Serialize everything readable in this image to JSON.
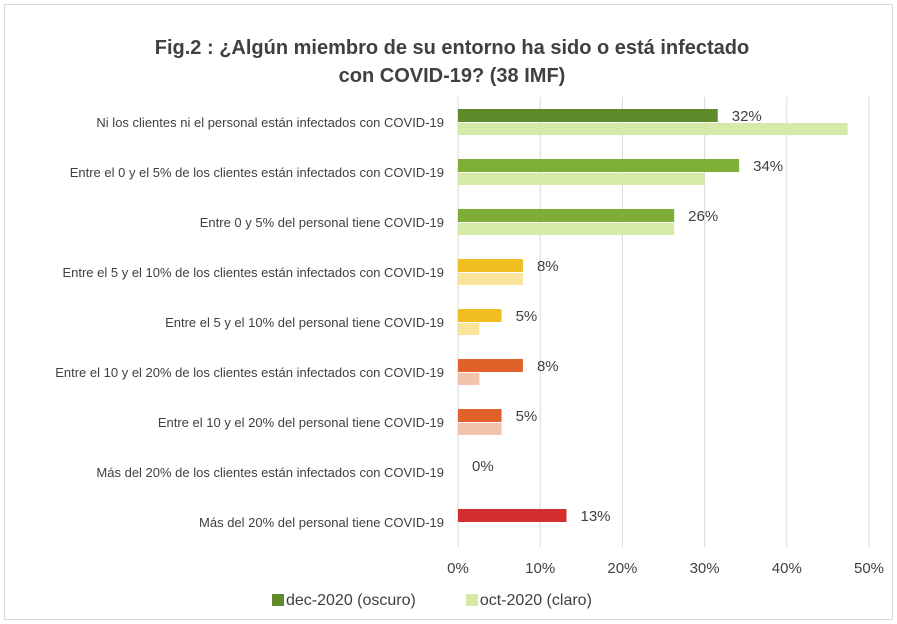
{
  "chart_data": {
    "type": "hbar",
    "title": "Fig.2 : ¿Algún miembro de su entorno ha sido o está infectado con COVID-19? (38 IMF)",
    "categories": [
      "Ni los clientes ni el personal están infectados con COVID-19",
      "Entre el 0 y el 5% de los clientes están infectados con COVID-19",
      "Entre 0 y 5% del personal tiene COVID-19",
      "Entre el 5 y el 10% de los clientes están infectados con COVID-19",
      "Entre el 5 y el 10% del personal tiene COVID-19",
      "Entre el 10 y el 20% de los clientes están infectados con COVID-19",
      "Entre el 10 y el 20% del personal tiene COVID-19",
      "Más del 20% de los clientes están infectados con COVID-19",
      "Más del 20% del personal tiene COVID-19"
    ],
    "series": [
      {
        "name": "dec-2020 (oscuro)",
        "color": "#5f8a2a",
        "colors": [
          "#5f8a2a",
          "#7fae36",
          "#7fae36",
          "#efbf21",
          "#efbf21",
          "#e0622a",
          "#e0622a",
          "#d42e2e",
          "#d42e2e"
        ],
        "values": [
          31.6,
          34.2,
          26.3,
          7.9,
          5.3,
          7.9,
          5.3,
          0,
          13.2
        ],
        "value_labels": [
          "32%",
          "34%",
          "26%",
          "8%",
          "5%",
          "8%",
          "5%",
          "0%",
          "13%"
        ]
      },
      {
        "name": "oct-2020 (claro)",
        "color": "#d5e9a9",
        "colors": [
          "#d5e9a9",
          "#d5e9a9",
          "#d5e9a9",
          "#f8e49b",
          "#f8e49b",
          "#f4c3ae",
          "#f4c3ae",
          "#f2b3b3",
          "#f2b3b3"
        ],
        "values": [
          47.4,
          30,
          26.3,
          7.9,
          2.6,
          2.6,
          5.3,
          0,
          0
        ]
      }
    ],
    "xlim": [
      0,
      50
    ],
    "xticks": [
      {
        "value": 0,
        "label": "0%"
      },
      {
        "value": 10,
        "label": "10%"
      },
      {
        "value": 20,
        "label": "20%"
      },
      {
        "value": 30,
        "label": "30%"
      },
      {
        "value": 40,
        "label": "40%"
      },
      {
        "value": 50,
        "label": "50%"
      }
    ],
    "grid": true,
    "legend": "bottom"
  }
}
